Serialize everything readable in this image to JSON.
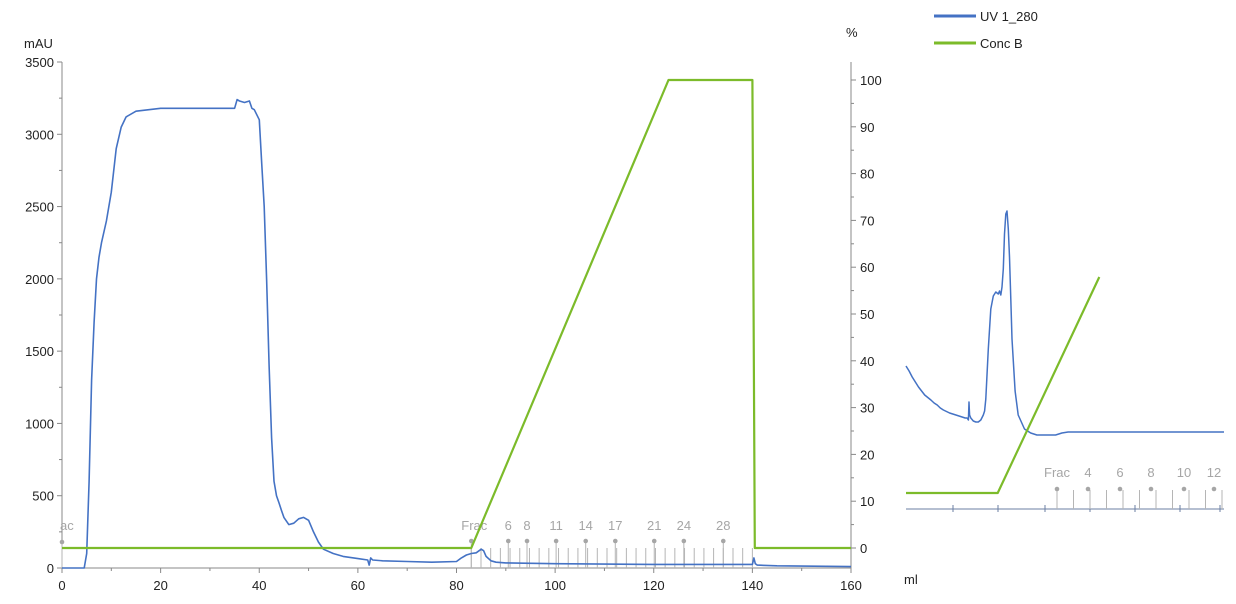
{
  "chart_data": {
    "type": "line",
    "x_label": "ml",
    "y_left_label": "mAU",
    "y_right_label": "%",
    "x_range": [
      0,
      160
    ],
    "y_left_range": [
      0,
      3500
    ],
    "y_right_range": [
      -4,
      104
    ],
    "x_ticks": [
      0,
      20,
      40,
      60,
      80,
      100,
      120,
      140,
      160
    ],
    "y_left_ticks": [
      0,
      500,
      1000,
      1500,
      2000,
      2500,
      3000,
      3500
    ],
    "y_right_ticks": [
      0,
      10,
      20,
      30,
      40,
      50,
      60,
      70,
      80,
      90,
      100
    ],
    "legend": {
      "position": "top-right",
      "entries": [
        {
          "name": "UV 1_280",
          "color": "#4472c4"
        },
        {
          "name": "Conc B",
          "color": "#7cbb2a"
        }
      ]
    },
    "series": [
      {
        "name": "UV 1_280",
        "axis": "left",
        "color": "#4472c4",
        "x": [
          0,
          4.5,
          5.0,
          5.5,
          6.0,
          6.5,
          7.0,
          7.5,
          8.0,
          9.0,
          10.0,
          11.0,
          12.0,
          13.0,
          15.0,
          20.0,
          25.0,
          30.0,
          35.0,
          35.5,
          36.0,
          37.0,
          38.0,
          38.5,
          39.0,
          40.0,
          40.5,
          41.0,
          41.5,
          42.0,
          42.5,
          43.0,
          43.5,
          44.0,
          44.5,
          45.0,
          46.0,
          47.0,
          48.0,
          49.0,
          50.0,
          51.0,
          52.0,
          53.0,
          55.0,
          57.0,
          60.0,
          62.0,
          62.3,
          62.6,
          63.0,
          65.0,
          70.0,
          75.0,
          80.0,
          81.0,
          82.0,
          83.0,
          84.0,
          85.0,
          85.5,
          86.0,
          87.0,
          88.0,
          90.0,
          100.0,
          120.0,
          140.0,
          140.3,
          140.6,
          141.0,
          145.0,
          160.0
        ],
        "y": [
          0,
          0,
          100,
          600,
          1300,
          1700,
          2000,
          2150,
          2250,
          2400,
          2600,
          2900,
          3050,
          3120,
          3160,
          3180,
          3180,
          3180,
          3180,
          3240,
          3230,
          3220,
          3230,
          3180,
          3170,
          3100,
          2800,
          2500,
          2000,
          1400,
          900,
          600,
          500,
          450,
          400,
          350,
          300,
          310,
          340,
          350,
          330,
          250,
          180,
          130,
          100,
          80,
          65,
          55,
          20,
          70,
          55,
          50,
          45,
          40,
          45,
          70,
          90,
          100,
          105,
          130,
          120,
          80,
          50,
          40,
          35,
          30,
          25,
          25,
          70,
          30,
          20,
          15,
          10
        ]
      },
      {
        "name": "Conc B",
        "axis": "right",
        "color": "#7cbb2a",
        "x": [
          0,
          83,
          123,
          140,
          140.5,
          160
        ],
        "y": [
          0,
          0,
          100,
          100,
          0,
          0
        ]
      }
    ],
    "fractions": {
      "label": "Frac",
      "start_x": 83,
      "end_x": 140,
      "count": 30,
      "labeled": [
        {
          "number": "6",
          "x": 90.5
        },
        {
          "number": "8",
          "x": 94.3
        },
        {
          "number": "11",
          "x": 100.2
        },
        {
          "number": "14",
          "x": 106.2
        },
        {
          "number": "17",
          "x": 112.2
        },
        {
          "number": "21",
          "x": 120.1
        },
        {
          "number": "24",
          "x": 126.1
        },
        {
          "number": "28",
          "x": 134.1
        }
      ]
    },
    "injection_marker": {
      "label": "ac",
      "x": 0
    },
    "zoom_inset": {
      "series": [
        {
          "name": "UV 1_280",
          "color": "#4472c4",
          "x": [
            0,
            5,
            10,
            20,
            30,
            40,
            45,
            50,
            55,
            60,
            70,
            80,
            90,
            95,
            98,
            100,
            101,
            101.5,
            102,
            104,
            108,
            112,
            116,
            120,
            124,
            126,
            128,
            132,
            136,
            140,
            144,
            148,
            150,
            152,
            154,
            156,
            158,
            160,
            162,
            164,
            166,
            168,
            170,
            175,
            180,
            190,
            200,
            210,
            215,
            218,
            220,
            225,
            230,
            240,
            250,
            260,
            280,
            300,
            320,
            330,
            340,
            345,
            350,
            355,
            360,
            365,
            370,
            380,
            390,
            400,
            420,
            440,
            460,
            480,
            500,
            510
          ],
          "y": [
            143,
            138,
            132,
            122,
            114,
            109,
            106,
            104,
            101,
            99,
            96,
            94,
            92,
            91,
            91,
            89,
            107,
            100,
            94,
            91,
            88,
            87,
            87,
            89,
            94,
            98,
            110,
            160,
            200,
            213,
            217,
            215,
            218,
            214,
            222,
            240,
            275,
            295,
            298,
            280,
            252,
            210,
            170,
            118,
            94,
            80,
            76,
            74,
            74,
            74,
            74,
            74,
            74,
            74,
            76,
            77,
            77,
            77,
            77,
            77,
            77,
            77,
            77,
            77,
            77,
            77,
            77,
            77,
            77,
            77,
            77,
            77,
            77,
            77,
            77,
            77
          ]
        },
        {
          "name": "Conc B",
          "color": "#7cbb2a",
          "x": [
            0,
            147,
            310
          ],
          "y": [
            0,
            0,
            48
          ]
        }
      ],
      "fractions": {
        "label": "Frac",
        "labeled": [
          {
            "number": "4"
          },
          {
            "number": "6"
          },
          {
            "number": "8"
          },
          {
            "number": "10"
          },
          {
            "number": "12"
          }
        ]
      }
    }
  }
}
